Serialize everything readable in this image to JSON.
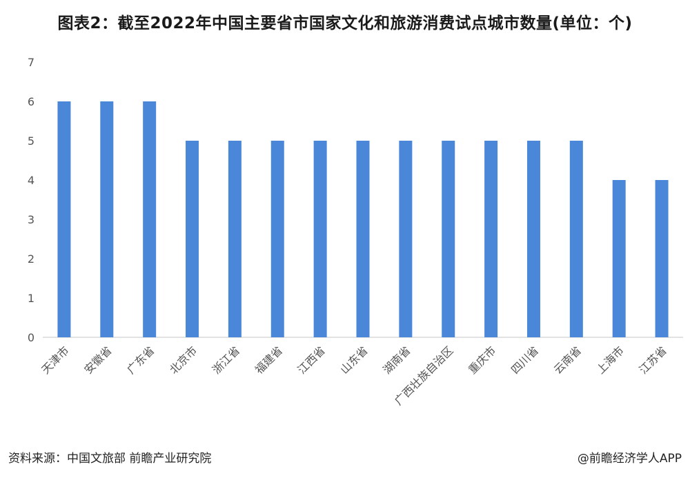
{
  "title": "图表2：截至2022年中国主要省市国家文化和旅游消费试点城市数量(单位：个)",
  "source": "资料来源：中国文旅部 前瞻产业研究院",
  "credit": "@前瞻经济学人APP",
  "colors": {
    "bar": "#4a87d9",
    "axis": "#d9d9d9"
  },
  "chart_data": {
    "type": "bar",
    "title": "图表2：截至2022年中国主要省市国家文化和旅游消费试点城市数量(单位：个)",
    "xlabel": "",
    "ylabel": "",
    "ylim": [
      0,
      7
    ],
    "yticks": [
      0,
      1,
      2,
      3,
      4,
      5,
      6,
      7
    ],
    "grid": false,
    "categories": [
      "天津市",
      "安徽省",
      "广东省",
      "北京市",
      "浙江省",
      "福建省",
      "江西省",
      "山东省",
      "湖南省",
      "广西壮族自治区",
      "重庆市",
      "四川省",
      "云南省",
      "上海市",
      "江苏省"
    ],
    "values": [
      6,
      6,
      6,
      5,
      5,
      5,
      5,
      5,
      5,
      5,
      5,
      5,
      5,
      4,
      4
    ]
  }
}
